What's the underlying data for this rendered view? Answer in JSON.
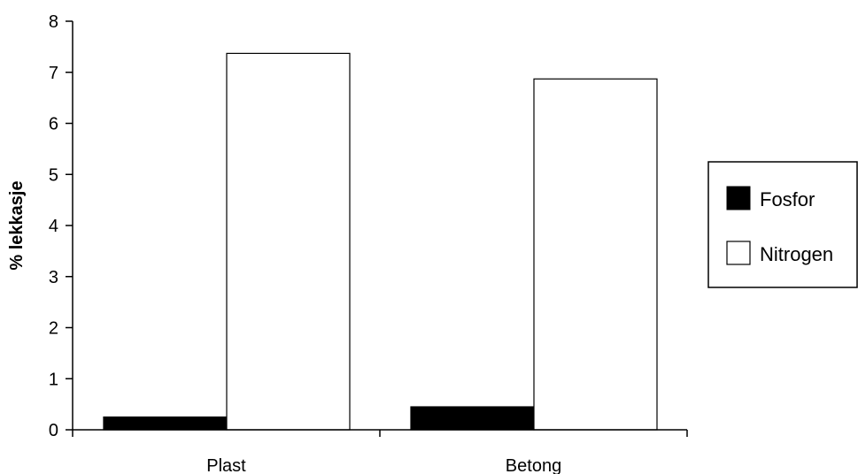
{
  "chart_data": {
    "type": "bar",
    "ylabel": "% lekkasje",
    "xlabel": "",
    "ylim": [
      0,
      8
    ],
    "yticks": [
      0,
      1,
      2,
      3,
      4,
      5,
      6,
      7,
      8
    ],
    "categories": [
      "Plast",
      "Betong"
    ],
    "series": [
      {
        "name": "Fosfor",
        "values": [
          0.25,
          0.45
        ],
        "color": "#000000"
      },
      {
        "name": "Nitrogen",
        "values": [
          7.37,
          6.87
        ],
        "color": "#ffffff"
      }
    ],
    "legend_position": "right",
    "grid": false
  }
}
